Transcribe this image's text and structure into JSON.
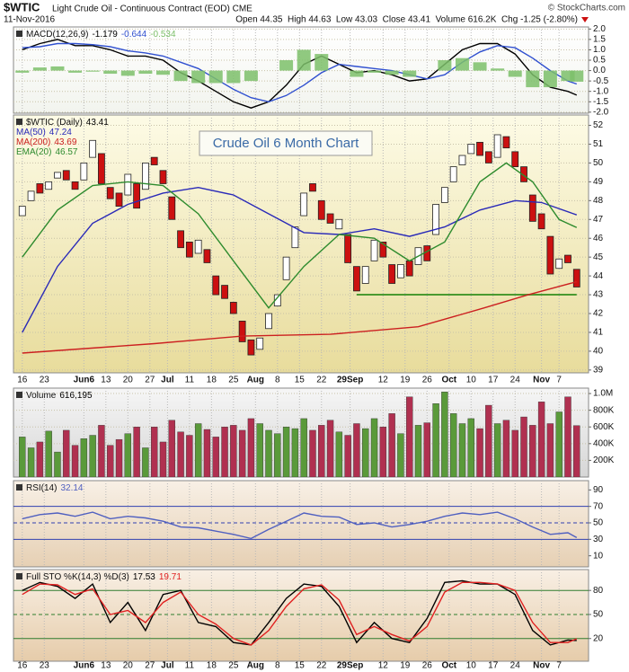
{
  "header": {
    "symbol": "$WTIC",
    "name": "Light Crude Oil - Continuous Contract (EOD) CME",
    "copyright": "© StockCharts.com",
    "date": "11-Nov-2016",
    "quote": "Open 44.35  High 44.63  Low 43.03  Close 43.41  Volume 616.2K  Chg -1.25 (-2.80%)"
  },
  "chart_data": [
    {
      "type": "line",
      "label": "MACD(12,26,9)",
      "ylim": [
        -2.05,
        2.1
      ],
      "grid": true,
      "yticks": [
        {
          "value": 2,
          "label": "2.0"
        },
        1.5,
        {
          "value": 1,
          "label": "1.0"
        },
        0.5,
        {
          "value": 0,
          "label": "0.0"
        },
        -0.5,
        {
          "value": -1,
          "label": "-1.0"
        },
        -1.5,
        {
          "value": -2,
          "label": "-2.0"
        }
      ],
      "x": [
        0,
        4,
        8,
        12,
        16,
        20,
        24,
        28,
        32,
        36,
        40,
        44,
        48,
        52,
        56,
        60,
        64,
        68,
        72,
        76,
        80,
        84,
        88,
        92,
        96,
        100,
        104,
        108,
        112,
        116,
        120,
        124,
        126
      ],
      "series": [
        {
          "style": "line",
          "color": "#000000",
          "values": [
            1.0,
            1.3,
            1.5,
            1.2,
            1.2,
            1.0,
            0.7,
            0.7,
            0.5,
            -0.1,
            -0.5,
            -1.0,
            -1.5,
            -1.8,
            -1.5,
            -0.7,
            0.3,
            0.7,
            0.3,
            -0.1,
            0.0,
            -0.2,
            -0.5,
            -0.4,
            0.3,
            1.0,
            1.3,
            1.3,
            0.8,
            -0.2,
            -0.8,
            -1.0,
            -1.179
          ]
        },
        {
          "style": "line",
          "color": "#3050d0",
          "values": [
            1.1,
            1.15,
            1.3,
            1.3,
            1.25,
            1.15,
            0.95,
            0.85,
            0.7,
            0.4,
            0.1,
            -0.4,
            -0.9,
            -1.3,
            -1.5,
            -1.2,
            -0.7,
            -0.1,
            0.3,
            0.2,
            0.1,
            0.0,
            -0.2,
            -0.4,
            -0.2,
            0.4,
            0.9,
            1.2,
            1.1,
            0.6,
            0.0,
            -0.5,
            -0.644
          ]
        },
        {
          "style": "bar",
          "color": "#7cbf6a",
          "values": [
            -0.1,
            0.15,
            0.2,
            -0.1,
            -0.05,
            -0.15,
            -0.25,
            -0.15,
            -0.2,
            -0.5,
            -0.6,
            -0.6,
            -0.6,
            -0.5,
            0.0,
            0.5,
            1.0,
            0.8,
            0.0,
            -0.3,
            -0.1,
            -0.2,
            -0.3,
            0.0,
            0.5,
            0.6,
            0.4,
            0.1,
            -0.3,
            -0.8,
            -0.8,
            -0.5,
            -0.534
          ]
        }
      ]
    },
    {
      "type": "candlestick",
      "label": "$WTIC (Daily)",
      "annotation": "Crude Oil 6 Month Chart",
      "ylim": [
        38.85,
        52.55
      ],
      "grid": true,
      "yticks": [
        39,
        40,
        41,
        42,
        43,
        44,
        45,
        46,
        47,
        48,
        49,
        50,
        51,
        52
      ],
      "xlim": [
        -2,
        128.7
      ],
      "xticks": [
        {
          "value": 0,
          "label": "16"
        },
        {
          "value": 5,
          "label": "23"
        },
        {
          "value": 14,
          "label": "Jun6"
        },
        {
          "value": 19,
          "label": "13"
        },
        {
          "value": 24,
          "label": "20"
        },
        {
          "value": 29,
          "label": "27"
        },
        {
          "value": 33,
          "label": "Jul"
        },
        {
          "value": 38,
          "label": "11"
        },
        {
          "value": 43,
          "label": "18"
        },
        {
          "value": 48,
          "label": "25"
        },
        {
          "value": 53,
          "label": "Aug"
        },
        {
          "value": 58,
          "label": "8"
        },
        {
          "value": 63,
          "label": "15"
        },
        {
          "value": 68,
          "label": "22"
        },
        {
          "value": 74.5,
          "label": "29Sep"
        },
        {
          "value": 82,
          "label": "12"
        },
        {
          "value": 87,
          "label": "19"
        },
        {
          "value": 92,
          "label": "26"
        },
        {
          "value": 97,
          "label": "Oct"
        },
        {
          "value": 102,
          "label": "10"
        },
        {
          "value": 107,
          "label": "17"
        },
        {
          "value": 112,
          "label": "24"
        },
        {
          "value": 118,
          "label": "Nov"
        },
        {
          "value": 122,
          "label": "7"
        }
      ],
      "support": {
        "value": 43,
        "from": 76,
        "to": 126,
        "color": "#4a9a30"
      },
      "up_color": "#ffffff",
      "down_color": "#cc1010",
      "x": [
        0,
        2,
        4,
        6,
        8,
        10,
        12,
        14,
        16,
        18,
        20,
        22,
        24,
        26,
        28,
        30,
        32,
        34,
        36,
        38,
        40,
        42,
        44,
        46,
        48,
        50,
        52,
        54,
        56,
        58,
        60,
        62,
        64,
        66,
        68,
        70,
        72,
        74,
        76,
        78,
        80,
        82,
        84,
        86,
        88,
        90,
        92,
        94,
        96,
        98,
        100,
        102,
        104,
        106,
        108,
        110,
        112,
        114,
        116,
        118,
        120,
        122,
        124,
        126
      ],
      "series": [
        {
          "style": "candle",
          "color": "#000000",
          "open": [
            47.2,
            48.0,
            48.9,
            48.6,
            49.2,
            49.6,
            49.0,
            49.1,
            50.3,
            50.5,
            48.7,
            48.4,
            48.3,
            48.9,
            48.6,
            50.3,
            49.6,
            48.2,
            46.4,
            45.8,
            45.2,
            45.4,
            44.0,
            43.5,
            42.6,
            41.6,
            40.6,
            40.1,
            41.2,
            42.4,
            43.8,
            45.5,
            47.2,
            48.9,
            48.0,
            47.3,
            46.5,
            46.2,
            44.5,
            43.6,
            44.8,
            45.8,
            44.6,
            43.9,
            44.8,
            44.6,
            45.6,
            46.2,
            47.9,
            49.0,
            49.9,
            50.5,
            51.1,
            50.6,
            50.3,
            51.4,
            50.6,
            49.8,
            48.3,
            47.3,
            46.1,
            44.4,
            45.1,
            44.35
          ],
          "values": [
            47.7,
            48.5,
            48.4,
            49.0,
            49.5,
            49.1,
            48.6,
            50.0,
            51.2,
            48.9,
            48.1,
            47.7,
            49.4,
            47.6,
            50.0,
            49.9,
            48.9,
            47.0,
            45.5,
            45.0,
            45.9,
            44.7,
            43.0,
            42.8,
            42.0,
            40.5,
            39.8,
            40.7,
            42.0,
            43.0,
            45.0,
            46.6,
            48.4,
            48.5,
            47.0,
            46.8,
            47.0,
            44.7,
            43.2,
            44.5,
            45.9,
            45.0,
            43.6,
            44.6,
            44.0,
            45.5,
            44.8,
            47.8,
            48.7,
            49.8,
            50.4,
            51.0,
            50.4,
            50.0,
            51.5,
            50.8,
            49.8,
            49.0,
            46.9,
            46.5,
            44.1,
            44.9,
            44.7,
            43.41
          ]
        },
        {
          "style": "line",
          "name": "MA(50)",
          "color": "#2a2ab8",
          "x": [
            0,
            8,
            16,
            24,
            32,
            40,
            48,
            56,
            64,
            72,
            80,
            88,
            96,
            104,
            112,
            118,
            126
          ],
          "values": [
            41.0,
            44.5,
            46.8,
            47.8,
            48.4,
            48.7,
            48.3,
            47.3,
            46.3,
            46.2,
            46.5,
            46.1,
            46.6,
            47.5,
            48.0,
            47.9,
            47.24
          ]
        },
        {
          "style": "line",
          "name": "MA(200)",
          "color": "#cc2020",
          "x": [
            0,
            30,
            50,
            70,
            90,
            105,
            115,
            126
          ],
          "values": [
            39.9,
            40.4,
            40.8,
            40.9,
            41.3,
            42.3,
            43.0,
            43.69
          ]
        },
        {
          "style": "line",
          "name": "EMA(20)",
          "color": "#2e8b2e",
          "x": [
            0,
            8,
            16,
            24,
            32,
            40,
            48,
            56,
            64,
            72,
            80,
            88,
            96,
            104,
            110,
            116,
            122,
            126
          ],
          "values": [
            45.0,
            47.5,
            48.8,
            49.0,
            48.8,
            47.3,
            44.8,
            42.3,
            44.5,
            46.2,
            46.0,
            44.8,
            45.8,
            49.0,
            50.0,
            49.0,
            47.0,
            46.57
          ]
        }
      ]
    },
    {
      "type": "bar",
      "label": "Volume",
      "ylim": [
        0,
        1065000
      ],
      "grid": true,
      "yticks": [
        {
          "value": 200000,
          "label": "200K"
        },
        {
          "value": 400000,
          "label": "400K"
        },
        {
          "value": 600000,
          "label": "600K"
        },
        {
          "value": 800000,
          "label": "800K"
        },
        {
          "value": 1000000,
          "label": "1.0M"
        }
      ],
      "up_color": "#5a9a3a",
      "down_color": "#b03050",
      "x": [
        0,
        2,
        4,
        6,
        8,
        10,
        12,
        14,
        16,
        18,
        20,
        22,
        24,
        26,
        28,
        30,
        32,
        34,
        36,
        38,
        40,
        42,
        44,
        46,
        48,
        50,
        52,
        54,
        56,
        58,
        60,
        62,
        64,
        66,
        68,
        70,
        72,
        74,
        76,
        78,
        80,
        82,
        84,
        86,
        88,
        90,
        92,
        94,
        96,
        98,
        100,
        102,
        104,
        106,
        108,
        110,
        112,
        114,
        116,
        118,
        120,
        122,
        124,
        126
      ],
      "series": [
        {
          "style": "bar",
          "color": "#5a9a3a",
          "values": [
            480000,
            350000,
            420000,
            550000,
            300000,
            560000,
            380000,
            460000,
            500000,
            620000,
            380000,
            450000,
            520000,
            600000,
            350000,
            600000,
            420000,
            680000,
            540000,
            500000,
            640000,
            570000,
            480000,
            600000,
            620000,
            560000,
            700000,
            640000,
            560000,
            520000,
            600000,
            580000,
            700000,
            560000,
            620000,
            680000,
            540000,
            500000,
            640000,
            580000,
            700000,
            600000,
            760000,
            520000,
            960000,
            620000,
            650000,
            880000,
            1020000,
            760000,
            640000,
            700000,
            580000,
            860000,
            640000,
            680000,
            560000,
            720000,
            620000,
            900000,
            640000,
            780000,
            960000,
            616195
          ],
          "value_labels": [
            null,
            null,
            null,
            null,
            null,
            null,
            null,
            null,
            null,
            null,
            null,
            null,
            null,
            null,
            null,
            null,
            null,
            null,
            null,
            null,
            null,
            null,
            null,
            null,
            null,
            null,
            null,
            null,
            null,
            null,
            null,
            null,
            null,
            null,
            null,
            null,
            null,
            null,
            null,
            null,
            null,
            null,
            null,
            null,
            null,
            null,
            null,
            null,
            null,
            null,
            null,
            null,
            null,
            null,
            null,
            null,
            null,
            null,
            null,
            null,
            null,
            null,
            null,
            "616,195"
          ]
        }
      ]
    },
    {
      "type": "line",
      "label": "RSI(14)",
      "ylim": [
        -3.5,
        101.3
      ],
      "grid": false,
      "yticks": [
        90,
        70,
        50,
        30,
        10
      ],
      "levels": [
        {
          "value": 70,
          "color": "#3040b0"
        },
        {
          "value": 50,
          "color": "#3040b0",
          "dashed": true
        },
        {
          "value": 30,
          "color": "#3040b0"
        }
      ],
      "x": [
        0,
        4,
        8,
        12,
        16,
        20,
        24,
        28,
        32,
        36,
        40,
        44,
        48,
        52,
        56,
        60,
        64,
        68,
        72,
        76,
        80,
        84,
        88,
        92,
        96,
        100,
        104,
        108,
        112,
        116,
        120,
        124,
        126
      ],
      "series": [
        {
          "style": "line",
          "color": "#5060c0",
          "values": [
            55,
            60,
            62,
            58,
            63,
            55,
            58,
            56,
            52,
            45,
            44,
            40,
            36,
            31,
            42,
            52,
            62,
            58,
            57,
            48,
            50,
            45,
            48,
            52,
            58,
            62,
            60,
            63,
            55,
            45,
            36,
            38,
            32.14
          ]
        }
      ]
    },
    {
      "type": "line",
      "label": "Full STO %K(14,3) %D(3)",
      "ylim": [
        -8.3,
        106
      ],
      "grid": false,
      "yticks": [
        80,
        50,
        20
      ],
      "levels": [
        {
          "value": 80,
          "color": "#2e7d2e"
        },
        {
          "value": 50,
          "color": "#2e7d2e",
          "dashed": true
        },
        {
          "value": 20,
          "color": "#2e7d2e"
        }
      ],
      "x": [
        0,
        4,
        8,
        12,
        16,
        20,
        24,
        28,
        32,
        36,
        40,
        44,
        48,
        52,
        56,
        60,
        64,
        68,
        72,
        76,
        80,
        84,
        88,
        92,
        96,
        100,
        104,
        108,
        112,
        116,
        120,
        124,
        126
      ],
      "series": [
        {
          "style": "line",
          "color": "#000000",
          "values": [
            80,
            90,
            85,
            70,
            88,
            40,
            65,
            30,
            75,
            80,
            40,
            35,
            15,
            12,
            40,
            70,
            88,
            85,
            60,
            15,
            40,
            20,
            15,
            45,
            90,
            92,
            88,
            88,
            75,
            30,
            12,
            18,
            17.53
          ]
        },
        {
          "style": "line",
          "color": "#e02020",
          "values": [
            75,
            88,
            87,
            75,
            82,
            50,
            55,
            40,
            65,
            78,
            50,
            38,
            20,
            12,
            30,
            60,
            82,
            87,
            68,
            25,
            35,
            25,
            17,
            35,
            78,
            90,
            90,
            88,
            80,
            40,
            15,
            15,
            19.71
          ]
        }
      ]
    }
  ]
}
